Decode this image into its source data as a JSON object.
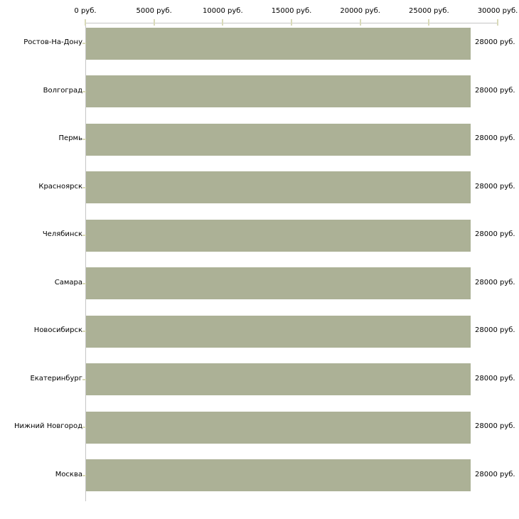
{
  "chart_data": {
    "type": "bar",
    "orientation": "horizontal",
    "title": "",
    "xlabel": "",
    "ylabel": "",
    "grid": false,
    "legend": false,
    "categories": [
      "Ростов-На-Дону",
      "Волгоград",
      "Пермь",
      "Красноярск",
      "Челябинск",
      "Самара",
      "Новосибирск",
      "Екатеринбург",
      "Нижний Новгород",
      "Москва"
    ],
    "values": [
      28000,
      28000,
      28000,
      28000,
      28000,
      28000,
      28000,
      28000,
      28000,
      28000
    ],
    "value_labels": [
      "28000 руб.",
      "28000 руб.",
      "28000 руб.",
      "28000 руб.",
      "28000 руб.",
      "28000 руб.",
      "28000 руб.",
      "28000 руб.",
      "28000 руб.",
      "28000 руб."
    ],
    "x_axis": {
      "position": "top",
      "min": 0,
      "max": 30000,
      "tick_interval": 5000,
      "tick_labels": [
        "0 руб.",
        "5000 руб.",
        "10000 руб.",
        "15000 руб.",
        "20000 руб.",
        "25000 руб.",
        "30000 руб."
      ]
    },
    "colors": {
      "bar_fill": "#acb196",
      "axis_line": "#c6c6c6",
      "tick_mark": "#d9dab9",
      "text": "#000000",
      "background": "#ffffff"
    }
  }
}
